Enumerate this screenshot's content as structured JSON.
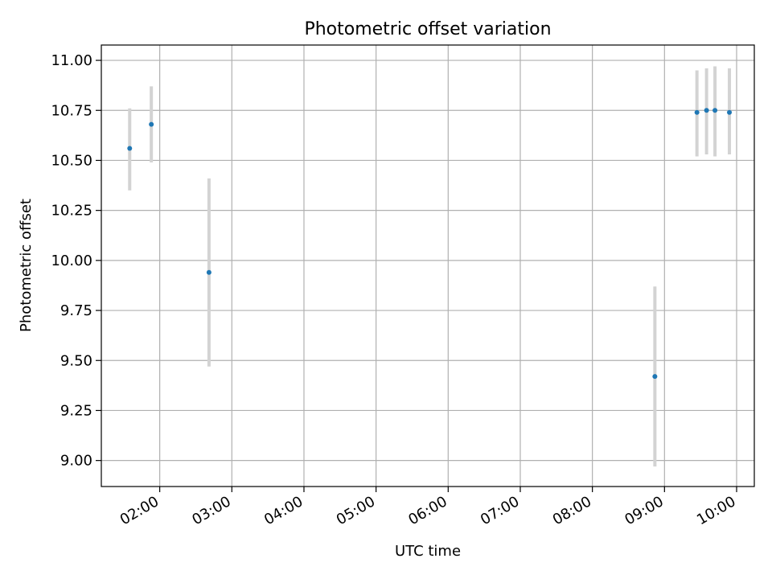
{
  "chart_data": {
    "type": "scatter",
    "title": "Photometric offset variation",
    "xlabel": "UTC time",
    "ylabel": "Photometric offset",
    "x_ticks": [
      "02:00",
      "03:00",
      "04:00",
      "05:00",
      "06:00",
      "07:00",
      "08:00",
      "09:00",
      "10:00"
    ],
    "y_ticks": [
      "9.00",
      "9.25",
      "9.50",
      "9.75",
      "10.00",
      "10.25",
      "10.50",
      "10.75",
      "11.00"
    ],
    "grid": true,
    "colors": {
      "marker": "#1f77b4",
      "errorbar": "#d3d3d3",
      "grid": "#b0b0b0"
    },
    "points": [
      {
        "x": "01:35",
        "y": 10.56,
        "y_low": 10.35,
        "y_high": 10.76
      },
      {
        "x": "01:53",
        "y": 10.68,
        "y_low": 10.49,
        "y_high": 10.87
      },
      {
        "x": "02:41",
        "y": 9.94,
        "y_low": 9.47,
        "y_high": 10.41
      },
      {
        "x": "08:52",
        "y": 9.42,
        "y_low": 8.97,
        "y_high": 9.87
      },
      {
        "x": "09:27",
        "y": 10.74,
        "y_low": 10.52,
        "y_high": 10.95
      },
      {
        "x": "09:35",
        "y": 10.75,
        "y_low": 10.53,
        "y_high": 10.96
      },
      {
        "x": "09:42",
        "y": 10.75,
        "y_low": 10.52,
        "y_high": 10.97
      },
      {
        "x": "09:54",
        "y": 10.74,
        "y_low": 10.53,
        "y_high": 10.96
      }
    ]
  }
}
